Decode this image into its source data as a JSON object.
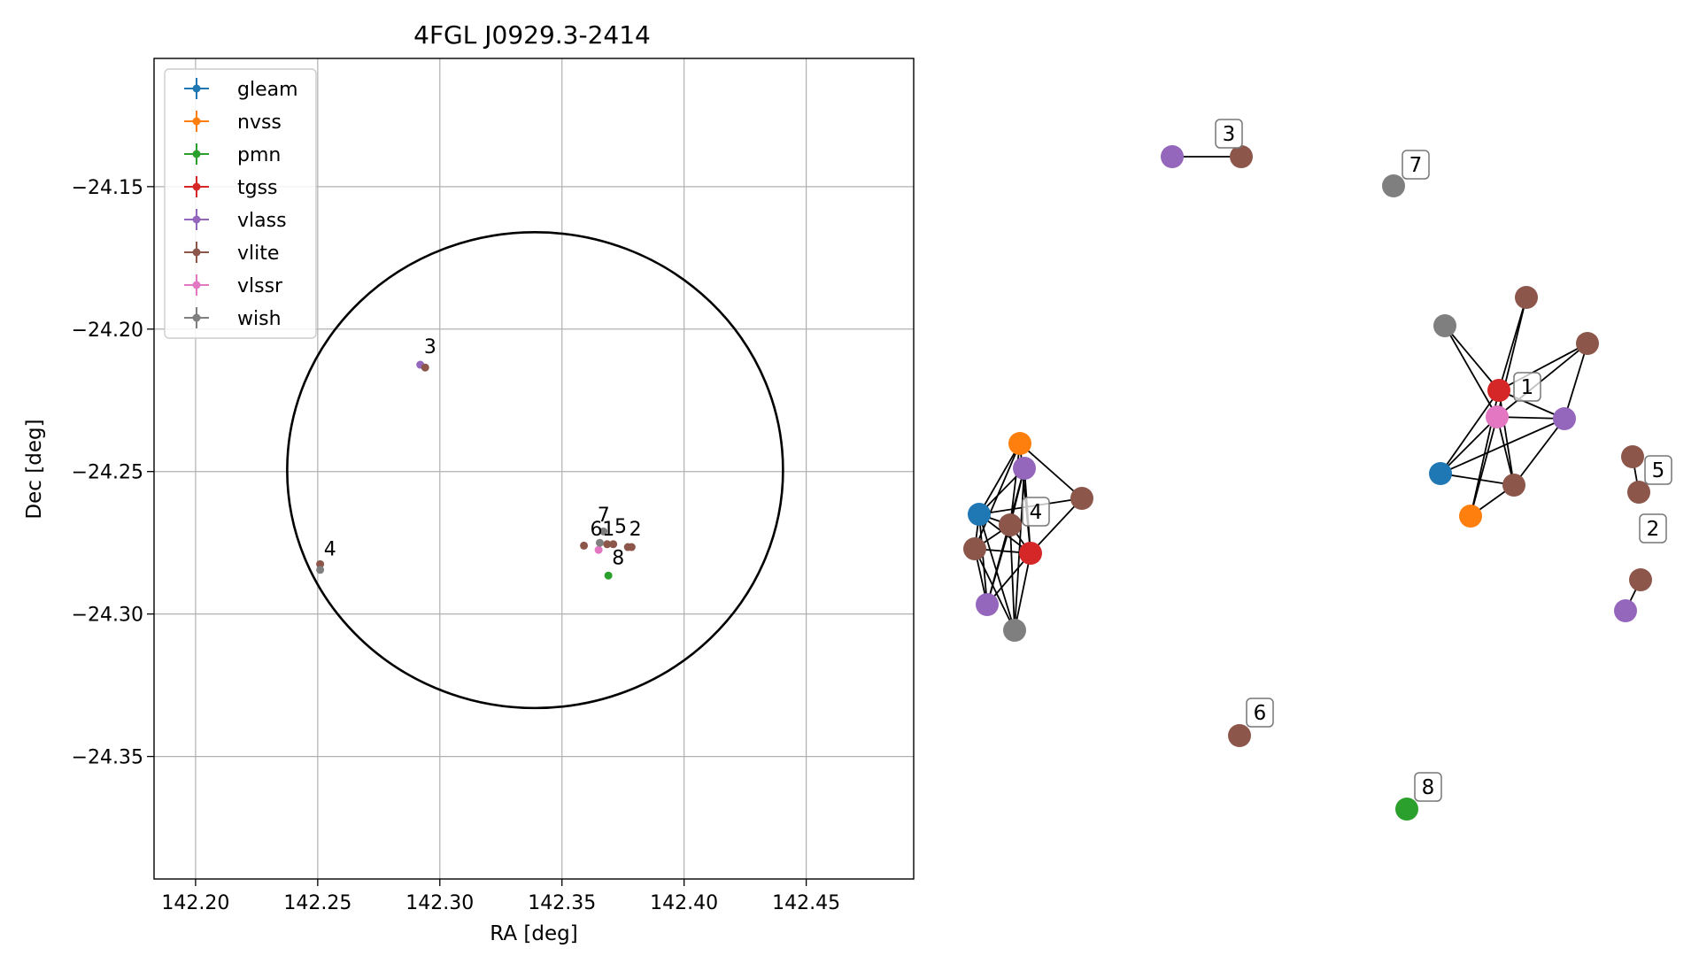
{
  "chart_data": [
    {
      "type": "scatter",
      "title": "4FGL J0929.3-2414",
      "xlabel": "RA [deg]",
      "ylabel": "Dec [deg]",
      "xlim": [
        142.183,
        142.494
      ],
      "ylim": [
        -24.393,
        -24.105
      ],
      "grid": true,
      "legend_position": "top-left",
      "x_ticks": [
        {
          "value": 142.2,
          "label": "142.20"
        },
        {
          "value": 142.25,
          "label": "142.25"
        },
        {
          "value": 142.3,
          "label": "142.30"
        },
        {
          "value": 142.35,
          "label": "142.35"
        },
        {
          "value": 142.4,
          "label": "142.40"
        },
        {
          "value": 142.45,
          "label": "142.45"
        }
      ],
      "y_ticks": [
        {
          "value": -24.15,
          "label": "−24.15"
        },
        {
          "value": -24.2,
          "label": "−24.20"
        },
        {
          "value": -24.25,
          "label": "−24.25"
        },
        {
          "value": -24.3,
          "label": "−24.30"
        },
        {
          "value": -24.35,
          "label": "−24.35"
        }
      ],
      "ellipse": {
        "center_ra": 142.339,
        "center_dec": -24.2495,
        "semi_axis_ra": 0.1015,
        "semi_axis_dec": 0.0835
      },
      "series": [
        {
          "name": "gleam",
          "color": "#1f77b4",
          "points": []
        },
        {
          "name": "nvss",
          "color": "#ff7f0e",
          "points": []
        },
        {
          "name": "pmn",
          "color": "#2ca02c",
          "points": [
            [
              142.369,
              -24.2865
            ]
          ]
        },
        {
          "name": "tgss",
          "color": "#d62728",
          "points": []
        },
        {
          "name": "vlass",
          "color": "#9467bd",
          "points": [
            [
              142.292,
              -24.2125
            ]
          ]
        },
        {
          "name": "vlite",
          "color": "#8c564b",
          "points": [
            [
              142.294,
              -24.2135
            ],
            [
              142.251,
              -24.2825
            ],
            [
              142.359,
              -24.276
            ],
            [
              142.3685,
              -24.2755
            ],
            [
              142.371,
              -24.2755
            ],
            [
              142.377,
              -24.2765
            ],
            [
              142.3785,
              -24.2765
            ]
          ]
        },
        {
          "name": "vlssr",
          "color": "#e377c2",
          "points": [
            [
              142.365,
              -24.2775
            ]
          ]
        },
        {
          "name": "wish",
          "color": "#7f7f7f",
          "points": [
            [
              142.251,
              -24.2845
            ],
            [
              142.367,
              -24.271
            ],
            [
              142.3655,
              -24.275
            ]
          ]
        }
      ],
      "annotations": [
        {
          "text": "3",
          "x": 142.2935,
          "y": -24.2085
        },
        {
          "text": "4",
          "x": 142.2525,
          "y": -24.2795
        },
        {
          "text": "7",
          "x": 142.3645,
          "y": -24.2675
        },
        {
          "text": "6",
          "x": 142.3615,
          "y": -24.2725
        },
        {
          "text": "1",
          "x": 142.3665,
          "y": -24.2725
        },
        {
          "text": "5",
          "x": 142.3715,
          "y": -24.2715
        },
        {
          "text": "2",
          "x": 142.3775,
          "y": -24.2725
        },
        {
          "text": "8",
          "x": 142.3705,
          "y": -24.2825
        }
      ]
    },
    {
      "type": "network",
      "node_colors": {
        "gleam": "#1f77b4",
        "nvss": "#ff7f0e",
        "pmn": "#2ca02c",
        "tgss": "#d62728",
        "vlass": "#9467bd",
        "vlite": "#8c564b",
        "vlssr": "#e377c2",
        "wish": "#7f7f7f"
      },
      "labels": [
        "3",
        "7",
        "1",
        "4",
        "5",
        "2",
        "6",
        "8"
      ]
    }
  ]
}
